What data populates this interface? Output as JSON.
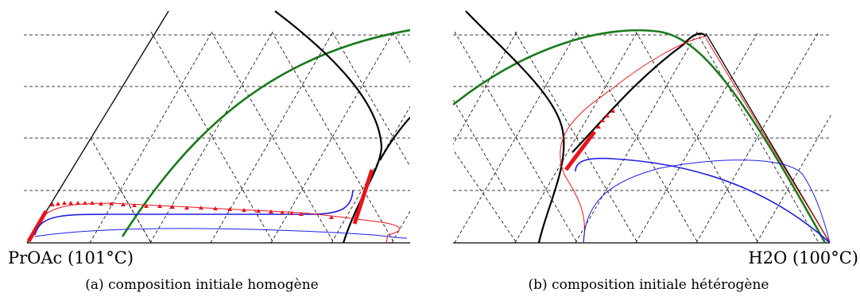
{
  "panel_a": {
    "vertex_label": "PrOAc (101°C)",
    "caption": "(a) composition initiale homogène"
  },
  "panel_b": {
    "vertex_label": "H2O (100°C)",
    "caption": "(b) composition initiale hétérogène"
  },
  "colors": {
    "black_curve": "#000000",
    "green_curve": "#1a7a1a",
    "red_curve": "#e8141a",
    "blue_curve": "#1f1fe0",
    "grid": "#000000"
  }
}
